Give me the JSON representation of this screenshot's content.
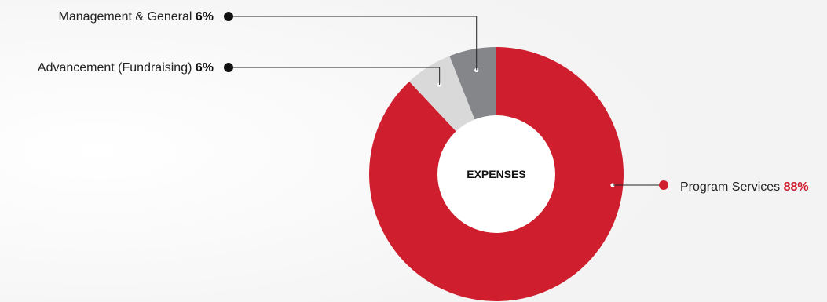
{
  "chart_data": {
    "type": "pie",
    "donut": true,
    "center_label": "EXPENSES",
    "slices": [
      {
        "name": "Program Services",
        "value": 88,
        "display": "88%",
        "color": "#cf1f2e",
        "pct_color": "#cf1f2e",
        "label_side": "right"
      },
      {
        "name": "Advancement (Fundraising)",
        "value": 6,
        "display": "6%",
        "color": "#d9d9d9",
        "pct_color": "#111111",
        "label_side": "left"
      },
      {
        "name": "Management & General",
        "value": 6,
        "display": "6%",
        "color": "#85868a",
        "pct_color": "#111111",
        "label_side": "left"
      }
    ],
    "legend": "none"
  }
}
